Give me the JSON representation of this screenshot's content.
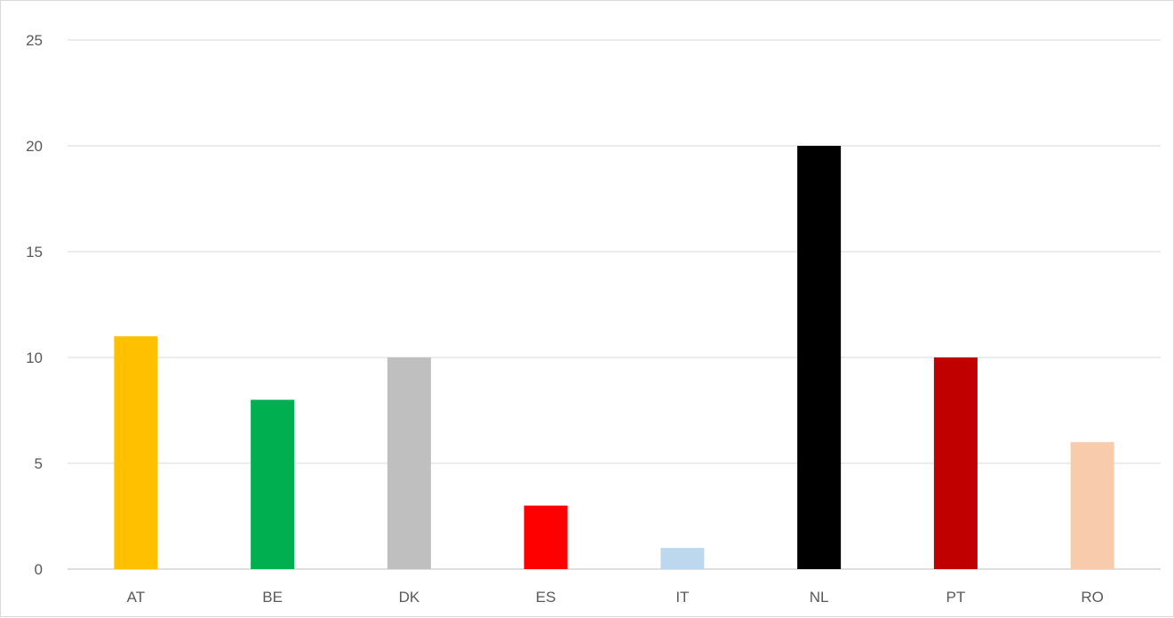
{
  "chart_data": {
    "type": "bar",
    "title": "",
    "xlabel": "",
    "ylabel": "",
    "categories": [
      "AT",
      "BE",
      "DK",
      "ES",
      "IT",
      "NL",
      "PT",
      "RO"
    ],
    "values": [
      11,
      8,
      10,
      3,
      1,
      20,
      10,
      6
    ],
    "bar_colors": [
      "#ffc000",
      "#00b050",
      "#bfbfbf",
      "#ff0000",
      "#bdd7ee",
      "#000000",
      "#c00000",
      "#f8cbad"
    ],
    "ylim": [
      0,
      25
    ],
    "yticks": [
      "0",
      "5",
      "10",
      "15",
      "20",
      "25"
    ],
    "grid": true,
    "legend": "none"
  }
}
